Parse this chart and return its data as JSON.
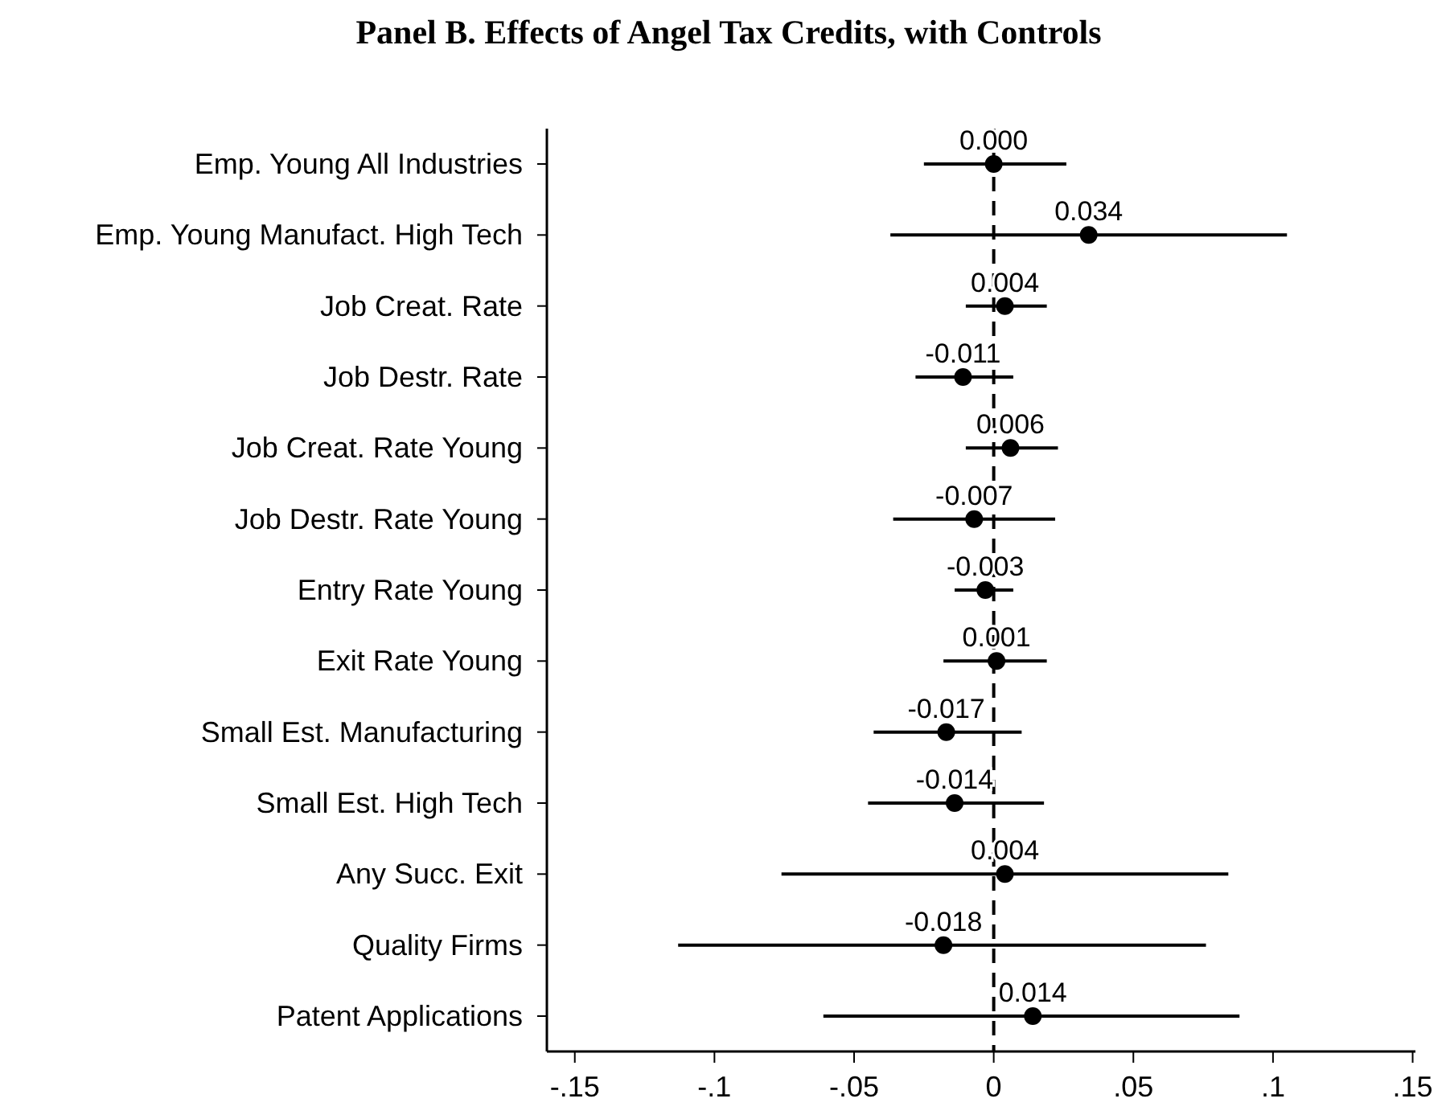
{
  "chart_data": {
    "type": "scatter",
    "orientation": "horizontal",
    "title": "Panel B. Effects of Angel Tax Credits, with Controls",
    "categories": [
      "Emp. Young All Industries",
      "Emp. Young Manufact. High Tech",
      "Job Creat. Rate",
      "Job Destr. Rate",
      "Job Creat. Rate Young",
      "Job Destr. Rate Young",
      "Entry Rate Young",
      "Exit Rate Young",
      "Small Est. Manufacturing",
      "Small Est. High Tech",
      "Any Succ. Exit",
      "Quality Firms",
      "Patent Applications"
    ],
    "values": [
      0.0,
      0.034,
      0.004,
      -0.011,
      0.006,
      -0.007,
      -0.003,
      0.001,
      -0.017,
      -0.014,
      0.004,
      -0.018,
      0.014
    ],
    "value_labels": [
      "0.000",
      "0.034",
      "0.004",
      "-0.011",
      "0.006",
      "-0.007",
      "-0.003",
      "0.001",
      "-0.017",
      "-0.014",
      "0.004",
      "-0.018",
      "0.014"
    ],
    "errors": [
      [
        -0.025,
        0.026
      ],
      [
        -0.037,
        0.105
      ],
      [
        -0.01,
        0.019
      ],
      [
        -0.028,
        0.007
      ],
      [
        -0.01,
        0.023
      ],
      [
        -0.036,
        0.022
      ],
      [
        -0.014,
        0.007
      ],
      [
        -0.018,
        0.019
      ],
      [
        -0.043,
        0.01
      ],
      [
        -0.045,
        0.018
      ],
      [
        -0.076,
        0.084
      ],
      [
        -0.113,
        0.076
      ],
      [
        -0.061,
        0.088
      ]
    ],
    "color": "#000000",
    "marker": "circle",
    "xlim": [
      -0.16,
      0.151
    ],
    "xticks": [
      {
        "value": -0.15,
        "label": "-.15"
      },
      {
        "value": -0.1,
        "label": "-.1"
      },
      {
        "value": -0.05,
        "label": "-.05"
      },
      {
        "value": 0,
        "label": "0"
      },
      {
        "value": 0.05,
        "label": ".05"
      },
      {
        "value": 0.1,
        "label": ".1"
      },
      {
        "value": 0.15,
        "label": ".15"
      }
    ],
    "ref_lines": [
      {
        "axis": "x",
        "value": 0,
        "line_style": "dashed",
        "color": "#000000"
      }
    ],
    "grid": false
  }
}
